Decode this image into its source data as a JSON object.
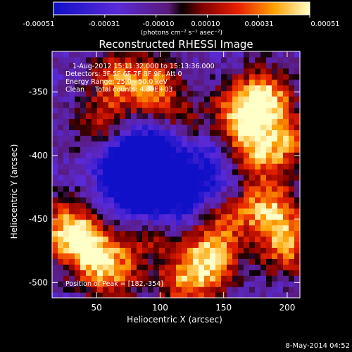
{
  "colorbar": {
    "tick_labels": [
      "-0.00051",
      "-0.00031",
      "-0.00010",
      "0.00010",
      "0.00031",
      "0.00051"
    ],
    "units": "(photons cm⁻² s⁻¹ asec⁻²)"
  },
  "chart_data": {
    "type": "heatmap",
    "title": "Reconstructed RHESSI Image",
    "xlabel": "Heliocentric X (arcsec)",
    "ylabel": "Heliocentric Y (arcsec)",
    "xlim": [
      15,
      210
    ],
    "ylim": [
      -512,
      -318
    ],
    "x_ticks": [
      50,
      100,
      150,
      200
    ],
    "y_ticks": [
      -350,
      -400,
      -450,
      -500
    ],
    "value_range": [
      -0.00051,
      0.00051
    ],
    "annotations": [
      "1-Aug-2012 15:11:32.000 to 15:13:36.000",
      "Detectors: 3F 5F 6F 7F 8F 9F, Att 0",
      "Energy Range: 25.0 - 50.0 keV",
      "Clean     Total counts: 4.89E+03"
    ],
    "peak_label": "Position of Peak = [182,-354]",
    "peak": [
      182,
      -354
    ],
    "bright_regions": [
      {
        "x": 182,
        "y": -354,
        "level": 1.0
      },
      {
        "x": 160,
        "y": -370,
        "level": 0.8
      },
      {
        "x": 165,
        "y": -400,
        "level": 0.7
      },
      {
        "x": 195,
        "y": -390,
        "level": 0.75
      },
      {
        "x": 185,
        "y": -440,
        "level": 0.85
      },
      {
        "x": 200,
        "y": -470,
        "level": 0.8
      },
      {
        "x": 140,
        "y": -480,
        "level": 0.9
      },
      {
        "x": 120,
        "y": -500,
        "level": 0.7
      },
      {
        "x": 40,
        "y": -470,
        "level": 0.8
      },
      {
        "x": 60,
        "y": -490,
        "level": 0.85
      },
      {
        "x": 25,
        "y": -455,
        "level": 0.65
      },
      {
        "x": 95,
        "y": -345,
        "level": 0.7
      },
      {
        "x": 65,
        "y": -340,
        "level": 0.6
      },
      {
        "x": 55,
        "y": -380,
        "level": 0.55
      },
      {
        "x": 120,
        "y": -380,
        "level": 0.5
      },
      {
        "x": 90,
        "y": -460,
        "level": 0.5
      },
      {
        "x": 150,
        "y": -445,
        "level": 0.55
      }
    ],
    "dark_regions": [
      {
        "x": 80,
        "y": -420,
        "level": -0.9
      },
      {
        "x": 100,
        "y": -395,
        "level": -0.8
      },
      {
        "x": 70,
        "y": -400,
        "level": -0.75
      },
      {
        "x": 120,
        "y": -430,
        "level": -0.7
      },
      {
        "x": 140,
        "y": -390,
        "level": -0.6
      },
      {
        "x": 90,
        "y": -440,
        "level": -0.65
      },
      {
        "x": 150,
        "y": -420,
        "level": -0.5
      }
    ]
  },
  "footer": {
    "timestamp": "8-May-2014 04:52"
  }
}
